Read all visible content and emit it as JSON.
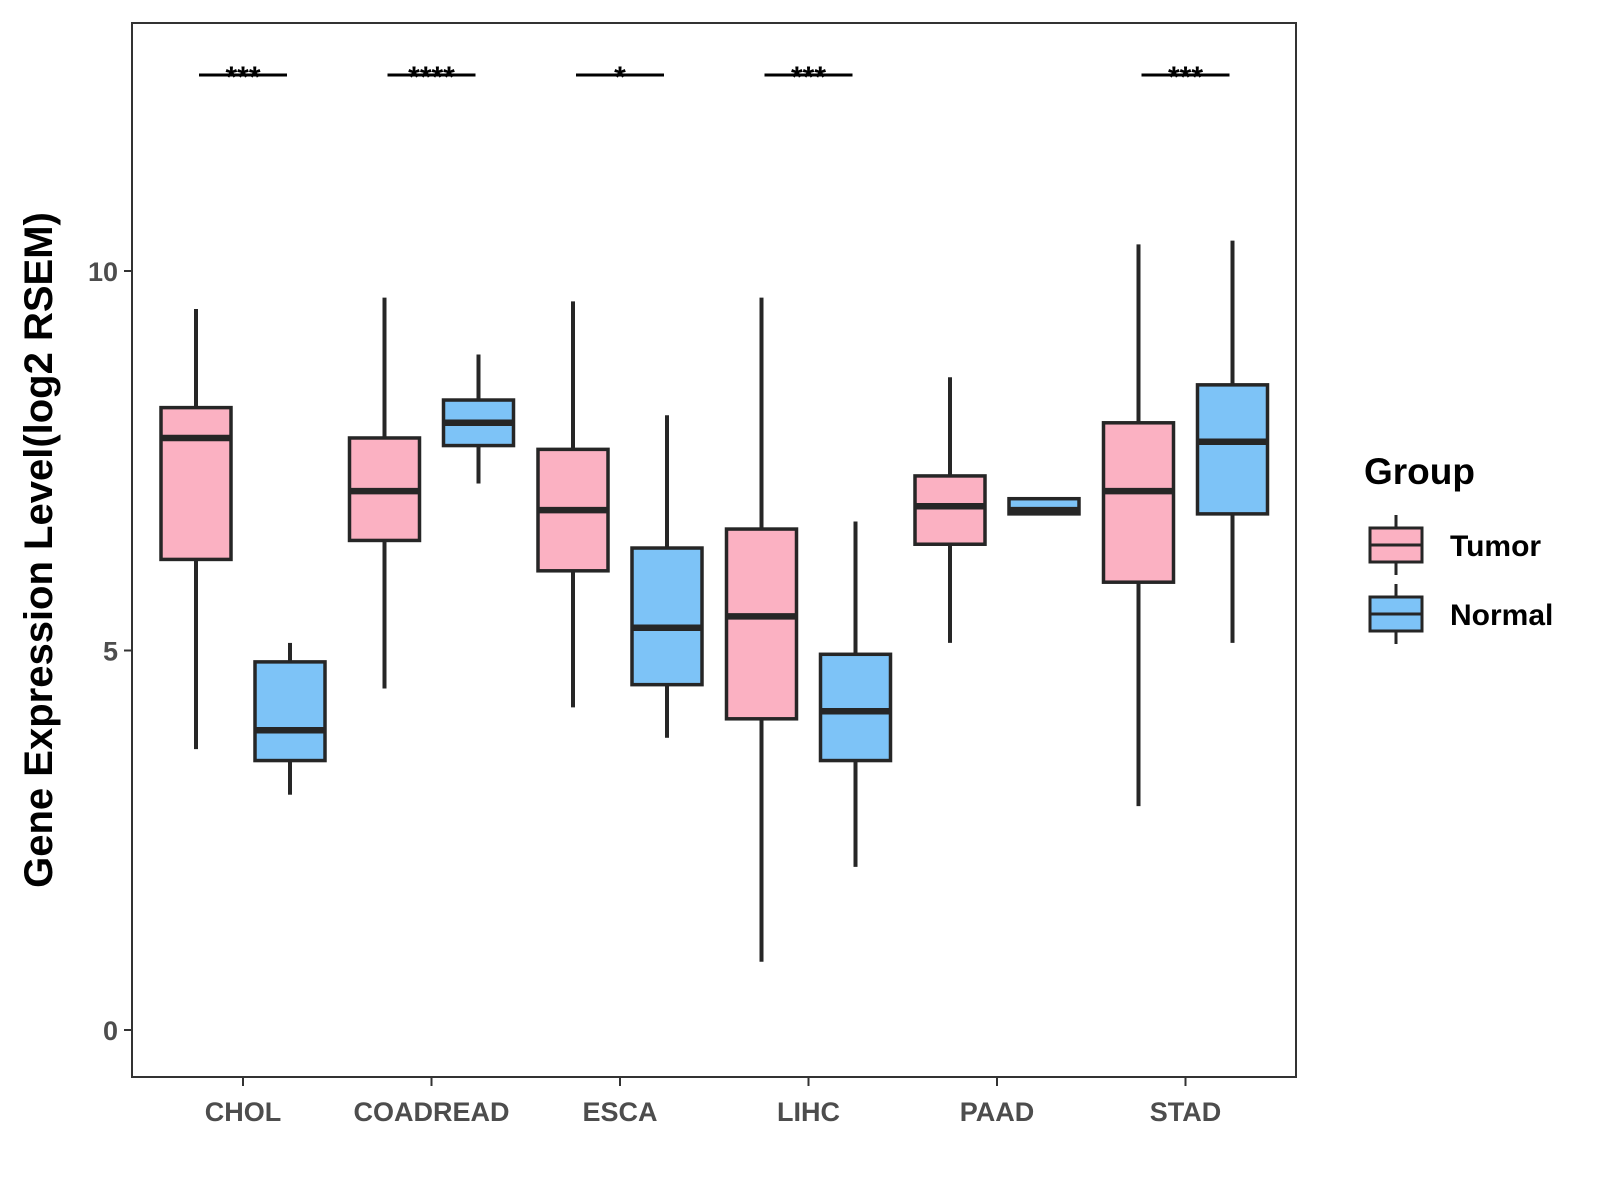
{
  "chart_data": {
    "type": "boxplot",
    "title": "",
    "xlabel": "",
    "ylabel": "Gene Expression Level(log2 RSEM)",
    "ylim": [
      -0.6,
      13.3
    ],
    "yticks": [
      0,
      5,
      10
    ],
    "categories": [
      "CHOL",
      "COADREAD",
      "ESCA",
      "LIHC",
      "PAAD",
      "STAD"
    ],
    "legend": {
      "title": "Group",
      "position": "right"
    },
    "series": [
      {
        "name": "Tumor",
        "color": "#fbb1c2",
        "boxes": [
          {
            "whisker_low": 3.7,
            "q1": 6.2,
            "median": 7.8,
            "q3": 8.2,
            "whisker_high": 9.5
          },
          {
            "whisker_low": 4.5,
            "q1": 6.45,
            "median": 7.1,
            "q3": 7.8,
            "whisker_high": 9.65
          },
          {
            "whisker_low": 4.25,
            "q1": 6.05,
            "median": 6.85,
            "q3": 7.65,
            "whisker_high": 9.6
          },
          {
            "whisker_low": 0.9,
            "q1": 4.1,
            "median": 5.45,
            "q3": 6.6,
            "whisker_high": 9.65
          },
          {
            "whisker_low": 5.1,
            "q1": 6.4,
            "median": 6.9,
            "q3": 7.3,
            "whisker_high": 8.6
          },
          {
            "whisker_low": 2.95,
            "q1": 5.9,
            "median": 7.1,
            "q3": 8.0,
            "whisker_high": 10.35
          }
        ]
      },
      {
        "name": "Normal",
        "color": "#7dc3f7",
        "boxes": [
          {
            "whisker_low": 3.1,
            "q1": 3.55,
            "median": 3.95,
            "q3": 4.85,
            "whisker_high": 5.1
          },
          {
            "whisker_low": 7.2,
            "q1": 7.7,
            "median": 8.0,
            "q3": 8.3,
            "whisker_high": 8.9
          },
          {
            "whisker_low": 3.85,
            "q1": 4.55,
            "median": 5.3,
            "q3": 6.35,
            "whisker_high": 8.1
          },
          {
            "whisker_low": 2.15,
            "q1": 3.55,
            "median": 4.2,
            "q3": 4.95,
            "whisker_high": 6.7
          },
          {
            "whisker_low": 6.8,
            "q1": 6.8,
            "median": 6.85,
            "q3": 7.0,
            "whisker_high": 7.0
          },
          {
            "whisker_low": 5.1,
            "q1": 6.8,
            "median": 7.75,
            "q3": 8.5,
            "whisker_high": 10.4
          }
        ]
      }
    ],
    "significance": [
      {
        "category": "CHOL",
        "label": "***"
      },
      {
        "category": "COADREAD",
        "label": "****"
      },
      {
        "category": "ESCA",
        "label": "*"
      },
      {
        "category": "LIHC",
        "label": "***"
      },
      {
        "category": "STAD",
        "label": "***"
      }
    ]
  }
}
